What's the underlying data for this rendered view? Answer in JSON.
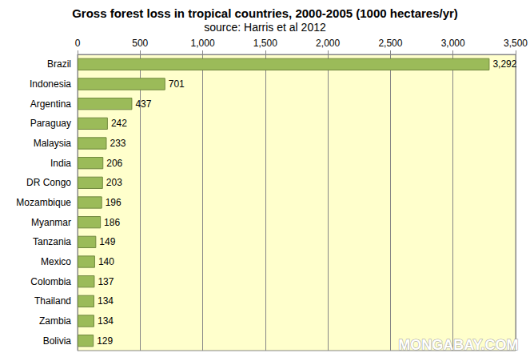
{
  "chart_data": {
    "type": "bar",
    "orientation": "horizontal",
    "title": "Gross forest loss in tropical countries, 2000-2005 (1000 hectares/yr)",
    "subtitle": "source: Harris et al 2012",
    "annotations": [
      "MONGABAY.COM"
    ],
    "categories": [
      "Brazil",
      "Indonesia",
      "Argentina",
      "Paraguay",
      "Malaysia",
      "India",
      "DR Congo",
      "Mozambique",
      "Myanmar",
      "Tanzania",
      "Mexico",
      "Colombia",
      "Thailand",
      "Zambia",
      "Bolivia"
    ],
    "values": [
      3292,
      701,
      437,
      242,
      233,
      206,
      203,
      196,
      186,
      149,
      140,
      137,
      134,
      134,
      129
    ],
    "value_labels": [
      "3,292",
      "701",
      "437",
      "242",
      "233",
      "206",
      "203",
      "196",
      "186",
      "149",
      "140",
      "137",
      "134",
      "134",
      "129"
    ],
    "color": "#9bbb59",
    "xlim": [
      0,
      3500
    ],
    "xticks": [
      0,
      500,
      {
        "value": 1000,
        "label": "1,000"
      },
      {
        "value": 1500,
        "label": "1,500"
      },
      {
        "value": 2000,
        "label": "2,000"
      },
      {
        "value": 2500,
        "label": "2,500"
      },
      {
        "value": 3000,
        "label": "3,000"
      },
      {
        "value": 3500,
        "label": "3,500"
      }
    ],
    "grid": true,
    "data_labels": true
  }
}
